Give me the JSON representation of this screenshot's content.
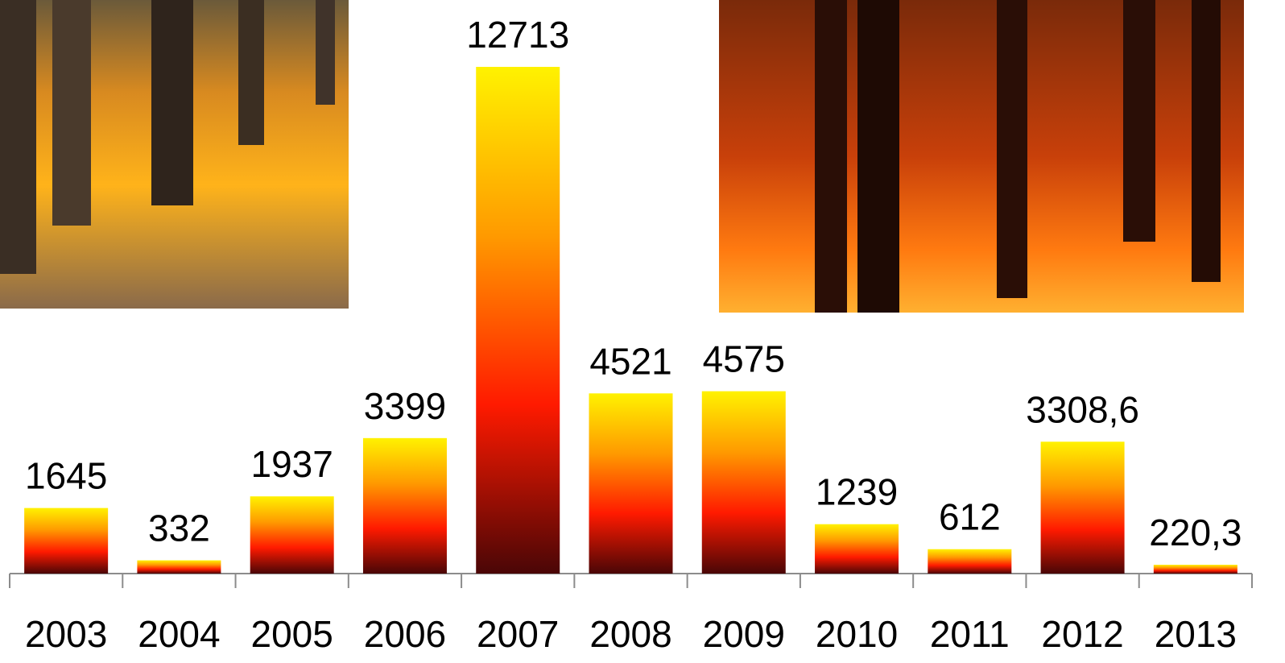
{
  "chart_data": {
    "type": "bar",
    "categories": [
      "2003",
      "2004",
      "2005",
      "2006",
      "2007",
      "2008",
      "2009",
      "2010",
      "2011",
      "2012",
      "2013"
    ],
    "values": [
      1645,
      332,
      1937,
      3399,
      12713,
      4521,
      4575,
      1239,
      612,
      3308.6,
      220.3
    ],
    "value_labels": [
      "1645",
      "332",
      "1937",
      "3399",
      "12713",
      "4521",
      "4575",
      "1239",
      "612",
      "3308,6",
      "220,3"
    ],
    "colors": [
      "#fff200",
      "#ff9a00",
      "#ff1a00",
      "#4a0606"
    ]
  }
}
